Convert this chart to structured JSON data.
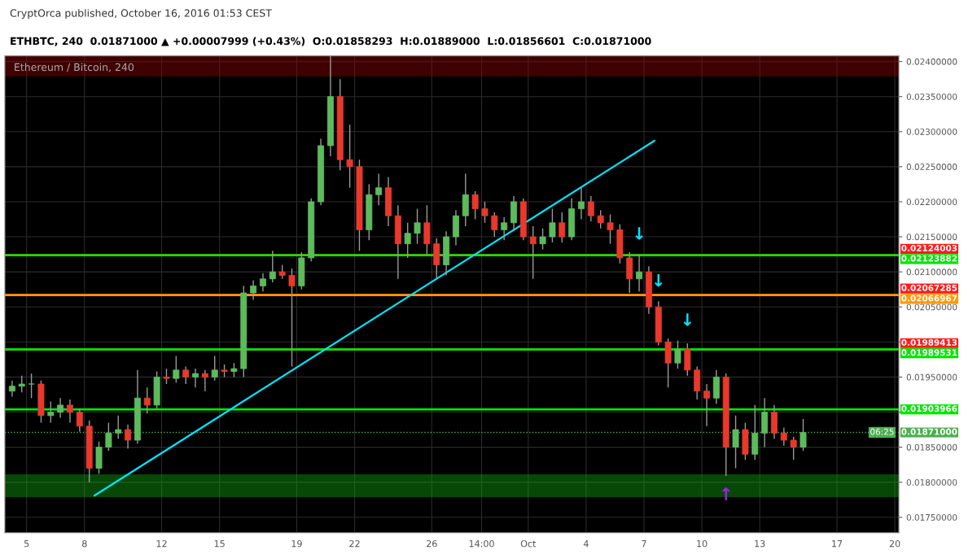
{
  "chart_data": {
    "type": "candlestick",
    "title": "Ethereum / Bitcoin, 240",
    "subtitle": "ETHBTC, 240  0.01871000 ▲ +0.00007999 (+0.43%)  O:0.01858293  H:0.01889000  L:0.01856601  C:0.01871000",
    "annotations": [
      "CryptOrca published, October 16, 2016 01:53 CEST",
      "06:25",
      {
        "text": "↓",
        "x": "2016-10-06T18:00",
        "y": 0.02125
      },
      {
        "text": "↓",
        "x": "2016-10-07T18:00",
        "y": 0.02058
      },
      {
        "text": "↓",
        "x": "2016-10-09T06:00",
        "y": 0.02002
      },
      {
        "text": "↑",
        "x": "2016-10-11T06:00",
        "y": 0.01809
      }
    ],
    "x": [
      "2016-09-04T06:00",
      "2016-09-04T18:00",
      "2016-09-05T06:00",
      "2016-09-05T18:00",
      "2016-09-06T06:00",
      "2016-09-06T18:00",
      "2016-09-07T06:00",
      "2016-09-07T18:00",
      "2016-09-08T06:00",
      "2016-09-08T18:00",
      "2016-09-09T06:00",
      "2016-09-09T18:00",
      "2016-09-10T06:00",
      "2016-09-10T18:00",
      "2016-09-11T06:00",
      "2016-09-11T18:00",
      "2016-09-12T06:00",
      "2016-09-12T18:00",
      "2016-09-13T06:00",
      "2016-09-13T18:00",
      "2016-09-14T06:00",
      "2016-09-14T18:00",
      "2016-09-15T06:00",
      "2016-09-15T18:00",
      "2016-09-16T06:00",
      "2016-09-16T18:00",
      "2016-09-17T06:00",
      "2016-09-17T18:00",
      "2016-09-18T06:00",
      "2016-09-18T18:00",
      "2016-09-19T06:00",
      "2016-09-19T18:00",
      "2016-09-20T06:00",
      "2016-09-20T18:00",
      "2016-09-21T06:00",
      "2016-09-21T18:00",
      "2016-09-22T06:00",
      "2016-09-22T18:00",
      "2016-09-23T06:00",
      "2016-09-23T18:00",
      "2016-09-24T06:00",
      "2016-09-24T18:00",
      "2016-09-25T06:00",
      "2016-09-25T18:00",
      "2016-09-26T06:00",
      "2016-09-26T18:00",
      "2016-09-27T06:00",
      "2016-09-27T18:00",
      "2016-09-28T06:00",
      "2016-09-28T18:00",
      "2016-09-29T06:00",
      "2016-09-29T18:00",
      "2016-09-30T06:00",
      "2016-09-30T18:00",
      "2016-10-01T06:00",
      "2016-10-01T18:00",
      "2016-10-02T06:00",
      "2016-10-02T18:00",
      "2016-10-03T06:00",
      "2016-10-03T18:00",
      "2016-10-04T06:00",
      "2016-10-04T18:00",
      "2016-10-05T06:00",
      "2016-10-05T18:00",
      "2016-10-06T06:00",
      "2016-10-06T18:00",
      "2016-10-07T06:00",
      "2016-10-07T18:00",
      "2016-10-08T06:00",
      "2016-10-08T18:00",
      "2016-10-09T06:00",
      "2016-10-09T18:00",
      "2016-10-10T06:00",
      "2016-10-10T18:00",
      "2016-10-11T06:00",
      "2016-10-11T18:00",
      "2016-10-12T06:00",
      "2016-10-12T18:00",
      "2016-10-13T06:00",
      "2016-10-13T18:00",
      "2016-10-14T06:00",
      "2016-10-14T18:00",
      "2016-10-15T06:00"
    ],
    "ohlc": [
      [
        0.0193,
        0.01945,
        0.01922,
        0.01937
      ],
      [
        0.01937,
        0.01952,
        0.01928,
        0.0194
      ],
      [
        0.0194,
        0.01955,
        0.0192,
        0.0194
      ],
      [
        0.0194,
        0.01945,
        0.01885,
        0.01895
      ],
      [
        0.01895,
        0.01915,
        0.01885,
        0.019
      ],
      [
        0.019,
        0.0192,
        0.01892,
        0.0191
      ],
      [
        0.0191,
        0.01918,
        0.01885,
        0.019
      ],
      [
        0.019,
        0.01905,
        0.01872,
        0.0188
      ],
      [
        0.0188,
        0.01888,
        0.018,
        0.0182
      ],
      [
        0.0182,
        0.01858,
        0.01812,
        0.0185
      ],
      [
        0.0185,
        0.01885,
        0.01845,
        0.0187
      ],
      [
        0.0187,
        0.01895,
        0.01862,
        0.01875
      ],
      [
        0.01875,
        0.01882,
        0.01848,
        0.0186
      ],
      [
        0.0186,
        0.0196,
        0.01855,
        0.0192
      ],
      [
        0.0192,
        0.01935,
        0.01898,
        0.0191
      ],
      [
        0.0191,
        0.01958,
        0.01905,
        0.0195
      ],
      [
        0.0195,
        0.01962,
        0.0194,
        0.01948
      ],
      [
        0.01948,
        0.0198,
        0.01942,
        0.0196
      ],
      [
        0.0196,
        0.01965,
        0.0194,
        0.0195
      ],
      [
        0.0195,
        0.01962,
        0.01935,
        0.01955
      ],
      [
        0.01955,
        0.0196,
        0.0193,
        0.0195
      ],
      [
        0.0195,
        0.0198,
        0.01945,
        0.0196
      ],
      [
        0.0196,
        0.01968,
        0.0195,
        0.01958
      ],
      [
        0.01958,
        0.0197,
        0.0195,
        0.01962
      ],
      [
        0.01962,
        0.0208,
        0.0195,
        0.0207
      ],
      [
        0.0207,
        0.02088,
        0.0206,
        0.0208
      ],
      [
        0.0208,
        0.02098,
        0.02072,
        0.0209
      ],
      [
        0.0209,
        0.0213,
        0.02085,
        0.021
      ],
      [
        0.021,
        0.0211,
        0.0209,
        0.02095
      ],
      [
        0.02095,
        0.02105,
        0.01965,
        0.0208
      ],
      [
        0.0208,
        0.02128,
        0.02075,
        0.0212
      ],
      [
        0.0212,
        0.02205,
        0.02115,
        0.022
      ],
      [
        0.022,
        0.0229,
        0.02195,
        0.0228
      ],
      [
        0.0228,
        0.0241,
        0.02265,
        0.0235
      ],
      [
        0.0235,
        0.02375,
        0.02245,
        0.0226
      ],
      [
        0.0226,
        0.0231,
        0.0222,
        0.0225
      ],
      [
        0.0225,
        0.0226,
        0.0213,
        0.0216
      ],
      [
        0.0216,
        0.02225,
        0.02145,
        0.0221
      ],
      [
        0.0221,
        0.0224,
        0.02195,
        0.0222
      ],
      [
        0.0222,
        0.02235,
        0.02165,
        0.0218
      ],
      [
        0.0218,
        0.02195,
        0.0209,
        0.0214
      ],
      [
        0.0214,
        0.0217,
        0.0212,
        0.02155
      ],
      [
        0.02155,
        0.0219,
        0.0214,
        0.0217
      ],
      [
        0.0217,
        0.02195,
        0.02125,
        0.0214
      ],
      [
        0.0214,
        0.02148,
        0.0209,
        0.0211
      ],
      [
        0.0211,
        0.02158,
        0.02095,
        0.0215
      ],
      [
        0.0215,
        0.02188,
        0.02138,
        0.0218
      ],
      [
        0.0218,
        0.0224,
        0.02165,
        0.0221
      ],
      [
        0.0221,
        0.02215,
        0.02175,
        0.0219
      ],
      [
        0.0219,
        0.022,
        0.0217,
        0.0218
      ],
      [
        0.0218,
        0.02185,
        0.0215,
        0.0216
      ],
      [
        0.0216,
        0.02178,
        0.02145,
        0.0217
      ],
      [
        0.0217,
        0.02208,
        0.02158,
        0.022
      ],
      [
        0.022,
        0.02205,
        0.02145,
        0.0215
      ],
      [
        0.0215,
        0.02165,
        0.0209,
        0.0214
      ],
      [
        0.0214,
        0.02162,
        0.02132,
        0.0215
      ],
      [
        0.0215,
        0.0219,
        0.02142,
        0.0217
      ],
      [
        0.0217,
        0.02185,
        0.02142,
        0.0215
      ],
      [
        0.0215,
        0.02205,
        0.02145,
        0.0219
      ],
      [
        0.0219,
        0.0222,
        0.02175,
        0.022
      ],
      [
        0.022,
        0.02208,
        0.02172,
        0.0218
      ],
      [
        0.0218,
        0.02188,
        0.02162,
        0.0217
      ],
      [
        0.0217,
        0.02182,
        0.0214,
        0.0216
      ],
      [
        0.0216,
        0.02168,
        0.02112,
        0.0212
      ],
      [
        0.0212,
        0.02128,
        0.0207,
        0.0209
      ],
      [
        0.0209,
        0.02125,
        0.02072,
        0.021
      ],
      [
        0.021,
        0.02108,
        0.0204,
        0.0205
      ],
      [
        0.0205,
        0.02058,
        0.01995,
        0.02
      ],
      [
        0.02,
        0.02005,
        0.01935,
        0.0197
      ],
      [
        0.0197,
        0.02002,
        0.01962,
        0.0199
      ],
      [
        0.0199,
        0.01998,
        0.01952,
        0.0196
      ],
      [
        0.0196,
        0.01965,
        0.01918,
        0.0193
      ],
      [
        0.0193,
        0.0194,
        0.0188,
        0.0192
      ],
      [
        0.0192,
        0.0196,
        0.01912,
        0.0195
      ],
      [
        0.0195,
        0.01955,
        0.01809,
        0.0185
      ],
      [
        0.0185,
        0.01895,
        0.0182,
        0.01875
      ],
      [
        0.01875,
        0.01885,
        0.01832,
        0.0184
      ],
      [
        0.0184,
        0.0191,
        0.01832,
        0.0187
      ],
      [
        0.0187,
        0.0192,
        0.0185,
        0.019
      ],
      [
        0.019,
        0.0191,
        0.01862,
        0.0187
      ],
      [
        0.0187,
        0.01878,
        0.01852,
        0.0186
      ],
      [
        0.0186,
        0.01865,
        0.01832,
        0.0185
      ],
      [
        0.0185,
        0.0189,
        0.01845,
        0.01871
      ]
    ],
    "colors": [
      "#5dbb5d",
      "#5dbb5d",
      "#5dbb5d",
      "#e8392c",
      "#5dbb5d",
      "#5dbb5d",
      "#e8392c",
      "#e8392c",
      "#e8392c",
      "#5dbb5d",
      "#5dbb5d",
      "#5dbb5d",
      "#e8392c",
      "#5dbb5d",
      "#e8392c",
      "#5dbb5d",
      "#e8392c",
      "#5dbb5d",
      "#e8392c",
      "#5dbb5d",
      "#e8392c",
      "#5dbb5d",
      "#e8392c",
      "#5dbb5d",
      "#5dbb5d",
      "#5dbb5d",
      "#5dbb5d",
      "#5dbb5d",
      "#e8392c",
      "#e8392c",
      "#5dbb5d",
      "#5dbb5d",
      "#5dbb5d",
      "#5dbb5d",
      "#e8392c",
      "#e8392c",
      "#e8392c",
      "#5dbb5d",
      "#5dbb5d",
      "#e8392c",
      "#e8392c",
      "#5dbb5d",
      "#5dbb5d",
      "#e8392c",
      "#e8392c",
      "#5dbb5d",
      "#5dbb5d",
      "#5dbb5d",
      "#e8392c",
      "#e8392c",
      "#e8392c",
      "#5dbb5d",
      "#5dbb5d",
      "#e8392c",
      "#e8392c",
      "#5dbb5d",
      "#5dbb5d",
      "#e8392c",
      "#5dbb5d",
      "#5dbb5d",
      "#e8392c",
      "#e8392c",
      "#e8392c",
      "#e8392c",
      "#e8392c",
      "#5dbb5d",
      "#e8392c",
      "#e8392c",
      "#e8392c",
      "#5dbb5d",
      "#e8392c",
      "#e8392c",
      "#e8392c",
      "#5dbb5d",
      "#e8392c",
      "#5dbb5d",
      "#e8392c",
      "#5dbb5d",
      "#5dbb5d",
      "#e8392c",
      "#e8392c",
      "#e8392c",
      "#5dbb5d"
    ],
    "series": [
      {
        "type": "line",
        "color": "#00e5ff",
        "x": [
          "2016-09-08T12:30",
          "2016-10-07T13:00"
        ],
        "values": [
          0.01781,
          0.02287
        ]
      }
    ],
    "ref_lines": [
      {
        "axis": "y",
        "value": 0.02124003,
        "label": "0.02124003",
        "color": "#ff1a1a"
      },
      {
        "axis": "y",
        "value": 0.02123882,
        "label": "0.02123882",
        "color": "#00e600"
      },
      {
        "axis": "y",
        "value": 0.02067285,
        "label": "0.02067285",
        "color": "#ff1a1a"
      },
      {
        "axis": "y",
        "value": 0.02066967,
        "label": "0.02066967",
        "color": "#ff9900"
      },
      {
        "axis": "y",
        "value": 0.01989413,
        "label": "0.01989413",
        "color": "#ff1a1a"
      },
      {
        "axis": "y",
        "value": 0.01989531,
        "label": "0.01989531",
        "color": "#00e600"
      },
      {
        "axis": "y",
        "value": 0.01903966,
        "label": "0.01903966",
        "color": "#00e600"
      },
      {
        "axis": "y",
        "value": 0.01871,
        "label": "0.01871000",
        "color": "#4caf50",
        "line_style": "dotted"
      }
    ],
    "bands": [
      {
        "axis": "y",
        "from": 0.0238,
        "to": 0.0241,
        "color": "#8b0000"
      },
      {
        "axis": "y",
        "from": 0.0178,
        "to": 0.0181,
        "color": "#11a011"
      }
    ],
    "xlim": [
      "2016-09-03T21:00",
      "2016-10-20T05:00"
    ],
    "xticks": [
      {
        "value": "2016-09-05",
        "label": "5"
      },
      {
        "value": "2016-09-08",
        "label": "8"
      },
      {
        "value": "2016-09-12",
        "label": "12"
      },
      {
        "value": "2016-09-15",
        "label": "15"
      },
      {
        "value": "2016-09-19",
        "label": "19"
      },
      {
        "value": "2016-09-22",
        "label": "22"
      },
      {
        "value": "2016-09-26",
        "label": "26"
      },
      {
        "value": "2016-09-28T14:00",
        "label": "14:00"
      },
      {
        "value": "2016-10-01",
        "label": "Oct"
      },
      {
        "value": "2016-10-04",
        "label": "4"
      },
      {
        "value": "2016-10-07",
        "label": "7"
      },
      {
        "value": "2016-10-10",
        "label": "10"
      },
      {
        "value": "2016-10-13",
        "label": "13"
      },
      {
        "value": "2016-10-17",
        "label": "17"
      },
      {
        "value": "2016-10-20",
        "label": "20"
      }
    ],
    "ylim": [
      0.01728,
      0.02408
    ],
    "yticks": [
      {
        "value": 0.0175,
        "label": "0.01750000"
      },
      {
        "value": 0.018,
        "label": "0.01800000"
      },
      {
        "value": 0.0185,
        "label": "0.01850000"
      },
      {
        "value": 0.019,
        "label": null
      },
      {
        "value": 0.0195,
        "label": "0.01950000"
      },
      {
        "value": 0.02,
        "label": null
      },
      {
        "value": 0.0205,
        "label": "0.02050000"
      },
      {
        "value": 0.021,
        "label": "0.02100000"
      },
      {
        "value": 0.0215,
        "label": "0.02150000"
      },
      {
        "value": 0.022,
        "label": "0.02200000"
      },
      {
        "value": 0.0225,
        "label": "0.02250000"
      },
      {
        "value": 0.023,
        "label": "0.02300000"
      },
      {
        "value": 0.0235,
        "label": "0.02350000"
      },
      {
        "value": 0.024,
        "label": "0.02400000"
      }
    ],
    "grid": true
  }
}
